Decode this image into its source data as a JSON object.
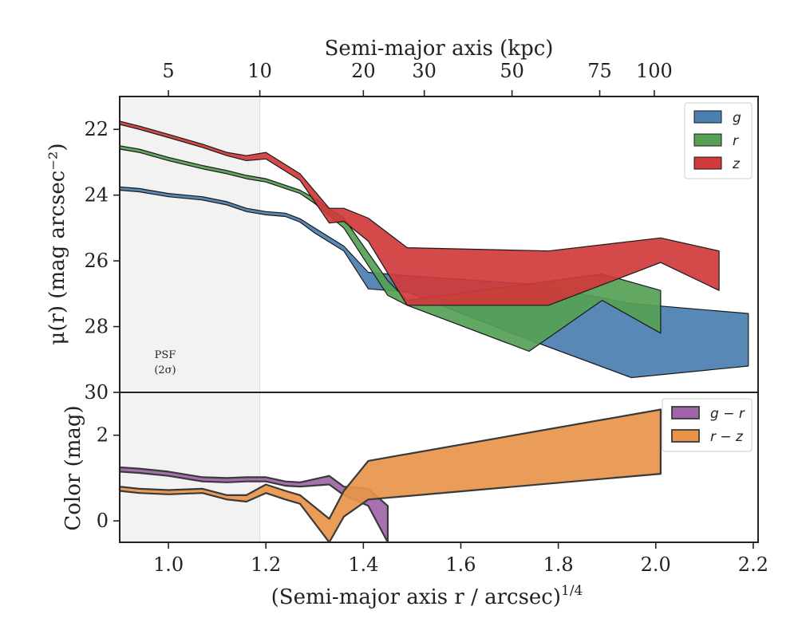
{
  "figure": {
    "top_axis_title": "Semi-major axis (kpc)",
    "bottom_axis_title": "(Semi-major axis r / arcsec)",
    "bottom_axis_title_exponent": "1/4",
    "upper_ylabel": "μ(r) (mag arcsec⁻²)",
    "lower_ylabel": "Color (mag)",
    "psf_label_line1": "PSF",
    "psf_label_line2": "(2σ)"
  },
  "chart_data": [
    {
      "type": "area",
      "panel": "surface-brightness",
      "xlim": [
        0.9,
        2.21
      ],
      "ylim": [
        30,
        21
      ],
      "y_inverted": true,
      "x_ticks": [
        1.0,
        1.2,
        1.4,
        1.6,
        1.8,
        2.0,
        2.2
      ],
      "x_tick_labels": [
        "1.0",
        "1.2",
        "1.4",
        "1.6",
        "1.8",
        "2.0",
        "2.2"
      ],
      "y_ticks": [
        22,
        24,
        26,
        28,
        30
      ],
      "y_tick_labels": [
        "22",
        "24",
        "26",
        "28",
        "30"
      ],
      "top_axis_ticks_kpc": [
        5,
        10,
        20,
        30,
        50,
        75,
        100
      ],
      "top_axis_tick_labels": [
        "5",
        "10",
        "20",
        "30",
        "50",
        "75",
        "100"
      ],
      "top_axis_tick_positions": [
        1.0,
        1.1875,
        1.4,
        1.525,
        1.705,
        1.885,
        1.997
      ],
      "psf_region": [
        0.9,
        1.1875
      ],
      "legend_position": "upper right",
      "series": [
        {
          "name": "g",
          "color": "#4a7fb0",
          "x": [
            0.9,
            0.94,
            1.0,
            1.07,
            1.12,
            1.16,
            1.2,
            1.24,
            1.27,
            1.3,
            1.36,
            1.41,
            1.45,
            1.49,
            1.74,
            1.95,
            2.19
          ],
          "y_upper": [
            23.75,
            23.8,
            23.95,
            24.05,
            24.2,
            24.4,
            24.5,
            24.55,
            24.72,
            25.0,
            25.55,
            26.35,
            26.4,
            26.45,
            26.7,
            27.3,
            27.6
          ],
          "y_lower": [
            23.85,
            23.9,
            24.05,
            24.15,
            24.3,
            24.5,
            24.6,
            24.65,
            24.82,
            25.15,
            25.7,
            26.85,
            26.9,
            26.95,
            28.4,
            29.55,
            29.2
          ]
        },
        {
          "name": "r",
          "color": "#55a055",
          "x": [
            0.9,
            0.94,
            1.0,
            1.07,
            1.12,
            1.16,
            1.2,
            1.24,
            1.27,
            1.3,
            1.36,
            1.45,
            1.49,
            1.74,
            1.89,
            2.01
          ],
          "y_upper": [
            22.5,
            22.6,
            22.85,
            23.1,
            23.25,
            23.4,
            23.5,
            23.7,
            23.85,
            24.1,
            24.7,
            26.6,
            27.2,
            26.7,
            26.4,
            26.9
          ],
          "y_lower": [
            22.6,
            22.7,
            22.95,
            23.2,
            23.35,
            23.5,
            23.6,
            23.8,
            23.95,
            24.25,
            25.0,
            27.05,
            27.35,
            28.75,
            27.2,
            28.2
          ]
        },
        {
          "name": "z",
          "color": "#d03a3a",
          "x": [
            0.9,
            0.94,
            1.0,
            1.07,
            1.12,
            1.16,
            1.2,
            1.27,
            1.33,
            1.36,
            1.41,
            1.49,
            1.78,
            2.01,
            2.13
          ],
          "y_upper": [
            21.75,
            21.9,
            22.15,
            22.45,
            22.7,
            22.8,
            22.7,
            23.35,
            24.4,
            24.4,
            24.7,
            25.6,
            25.7,
            25.3,
            25.7
          ],
          "y_lower": [
            21.85,
            22.0,
            22.25,
            22.55,
            22.8,
            22.95,
            22.9,
            23.55,
            24.85,
            24.8,
            25.4,
            27.35,
            27.35,
            26.05,
            26.9
          ]
        }
      ]
    },
    {
      "type": "area",
      "panel": "color",
      "xlim": [
        0.9,
        2.21
      ],
      "ylim": [
        -0.5,
        3.0
      ],
      "x_ticks": [
        1.0,
        1.2,
        1.4,
        1.6,
        1.8,
        2.0,
        2.2
      ],
      "x_tick_labels": [
        "1.0",
        "1.2",
        "1.4",
        "1.6",
        "1.8",
        "2.0",
        "2.2"
      ],
      "y_ticks": [
        0,
        2
      ],
      "y_tick_labels": [
        "0",
        "2"
      ],
      "legend_position": "upper right",
      "series": [
        {
          "name": "g − r",
          "color": "#a064a8",
          "x": [
            0.9,
            0.94,
            1.0,
            1.07,
            1.12,
            1.16,
            1.2,
            1.24,
            1.27,
            1.33,
            1.36,
            1.41,
            1.45
          ],
          "y_upper": [
            1.25,
            1.22,
            1.15,
            1.02,
            1.0,
            1.02,
            1.02,
            0.92,
            0.9,
            1.05,
            0.8,
            0.75,
            0.35
          ],
          "y_lower": [
            1.15,
            1.12,
            1.05,
            0.92,
            0.9,
            0.92,
            0.92,
            0.82,
            0.8,
            0.85,
            0.6,
            0.35,
            -0.5
          ]
        },
        {
          "name": "r − z",
          "color": "#e8954a",
          "x": [
            0.9,
            0.94,
            1.0,
            1.07,
            1.12,
            1.16,
            1.2,
            1.24,
            1.27,
            1.33,
            1.36,
            1.41,
            2.01
          ],
          "y_upper": [
            0.8,
            0.75,
            0.72,
            0.75,
            0.6,
            0.6,
            0.85,
            0.7,
            0.6,
            0.05,
            0.7,
            1.4,
            2.6
          ],
          "y_lower": [
            0.7,
            0.65,
            0.62,
            0.65,
            0.5,
            0.45,
            0.65,
            0.5,
            0.4,
            -0.5,
            0.1,
            0.5,
            1.1
          ]
        }
      ]
    }
  ]
}
